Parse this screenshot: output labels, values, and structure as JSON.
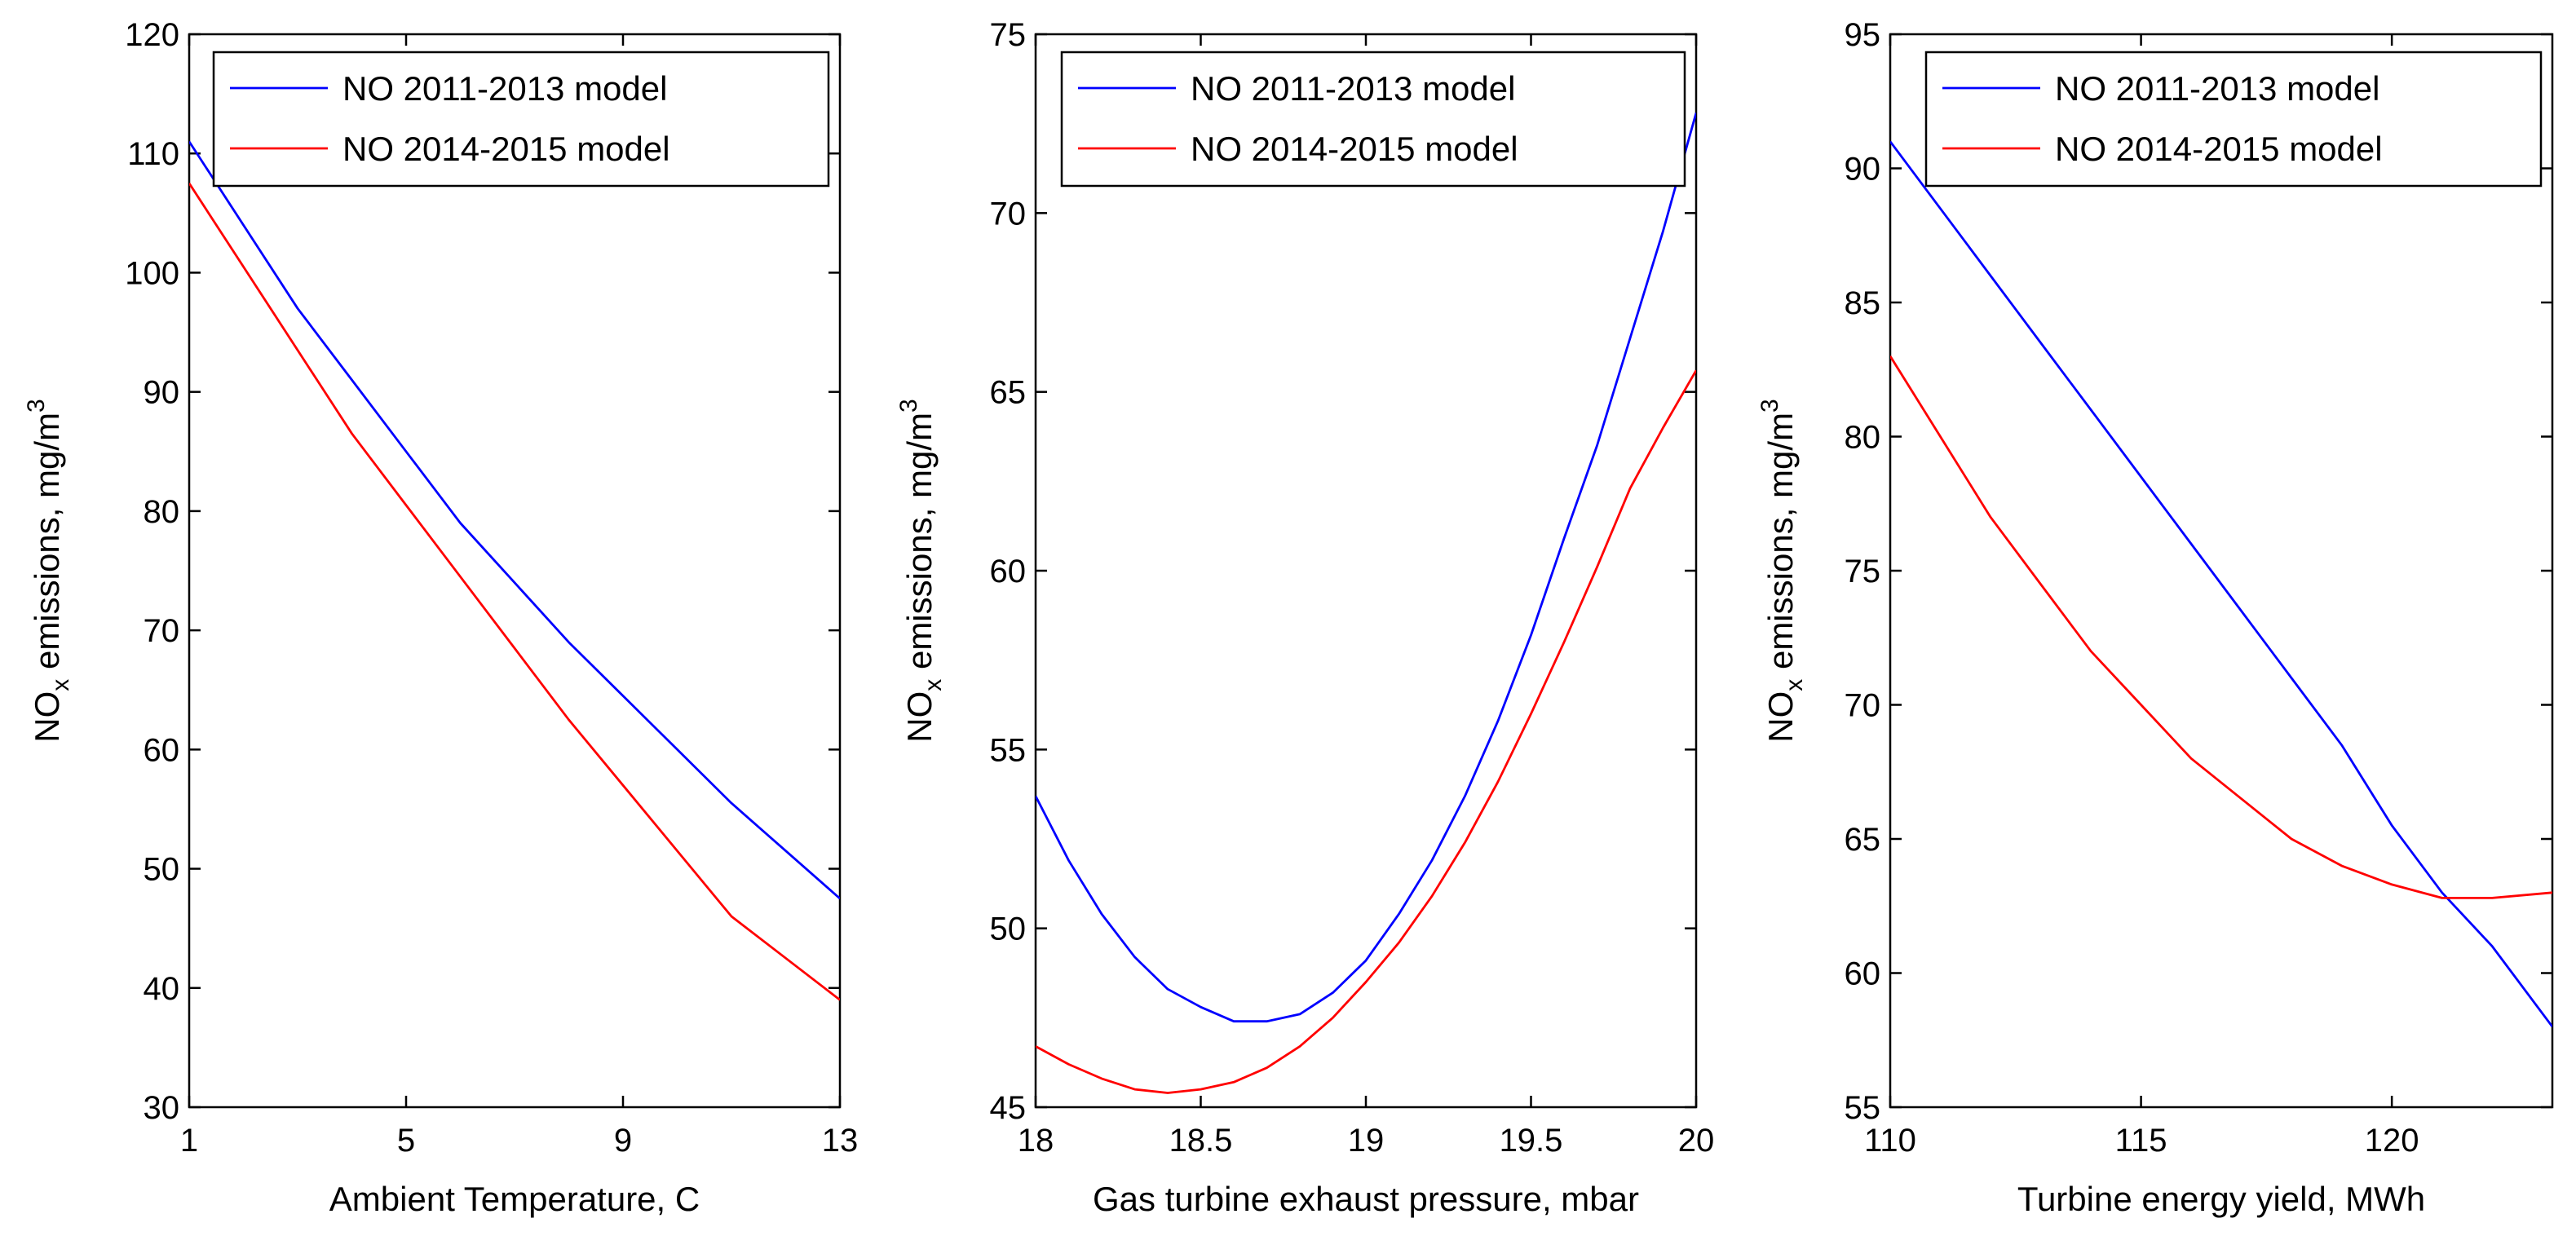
{
  "chart_data": [
    {
      "type": "line",
      "xlabel": "Ambient Temperature, C",
      "ylabel_main": "NO",
      "ylabel_sub": "x",
      "ylabel_rest": " emissions, mg/m",
      "ylabel_sup": "3",
      "xlim": [
        1,
        13
      ],
      "ylim": [
        30,
        120
      ],
      "xticks": [
        1,
        5,
        9,
        13
      ],
      "yticks": [
        30,
        40,
        50,
        60,
        70,
        80,
        90,
        100,
        110,
        120
      ],
      "legend_position": "top-right",
      "series": [
        {
          "name": "NO 2011-2013 model",
          "color": "#0000ff",
          "x": [
            1,
            2,
            3,
            4,
            5,
            6,
            7,
            8,
            9,
            10,
            11,
            12,
            13
          ],
          "y": [
            111,
            104,
            97,
            91,
            85,
            79,
            74,
            69,
            64.5,
            60,
            55.5,
            51.5,
            47.5
          ]
        },
        {
          "name": "NO 2014-2015 model",
          "color": "#ff0000",
          "x": [
            1,
            2,
            3,
            4,
            5,
            6,
            7,
            8,
            9,
            10,
            11,
            12,
            13
          ],
          "y": [
            107.5,
            100.5,
            93.5,
            86.5,
            80.5,
            74.5,
            68.5,
            62.5,
            57,
            51.5,
            46,
            42.5,
            39
          ]
        }
      ]
    },
    {
      "type": "line",
      "xlabel": "Gas turbine exhaust pressure, mbar",
      "ylabel_main": "NO",
      "ylabel_sub": "x",
      "ylabel_rest": " emissions, mg/m",
      "ylabel_sup": "3",
      "xlim": [
        18,
        20
      ],
      "ylim": [
        45,
        75
      ],
      "xticks": [
        18,
        18.5,
        19,
        19.5,
        20
      ],
      "yticks": [
        45,
        50,
        55,
        60,
        65,
        70,
        75
      ],
      "legend_position": "top-right",
      "series": [
        {
          "name": "NO 2011-2013 model",
          "color": "#0000ff",
          "x": [
            18,
            18.1,
            18.2,
            18.3,
            18.4,
            18.5,
            18.6,
            18.7,
            18.8,
            18.9,
            19,
            19.1,
            19.2,
            19.3,
            19.4,
            19.5,
            19.6,
            19.7,
            19.8,
            19.9,
            20
          ],
          "y": [
            53.7,
            51.9,
            50.4,
            49.2,
            48.3,
            47.8,
            47.4,
            47.4,
            47.6,
            48.2,
            49.1,
            50.4,
            51.9,
            53.7,
            55.8,
            58.2,
            60.9,
            63.5,
            66.5,
            69.5,
            72.8
          ]
        },
        {
          "name": "NO 2014-2015 model",
          "color": "#ff0000",
          "x": [
            18,
            18.1,
            18.2,
            18.3,
            18.4,
            18.5,
            18.6,
            18.7,
            18.8,
            18.9,
            19,
            19.1,
            19.2,
            19.3,
            19.4,
            19.5,
            19.6,
            19.7,
            19.8,
            19.9,
            20
          ],
          "y": [
            46.7,
            46.2,
            45.8,
            45.5,
            45.4,
            45.5,
            45.7,
            46.1,
            46.7,
            47.5,
            48.5,
            49.6,
            50.9,
            52.4,
            54.1,
            56,
            58,
            60.1,
            62.3,
            64,
            65.6
          ]
        }
      ]
    },
    {
      "type": "line",
      "xlabel": "Turbine energy yield, MWh",
      "ylabel_main": "NO",
      "ylabel_sub": "x",
      "ylabel_rest": " emissions, mg/m",
      "ylabel_sup": "3",
      "xlim": [
        110,
        123.2
      ],
      "ylim": [
        55,
        95
      ],
      "xticks": [
        110,
        115,
        120
      ],
      "yticks": [
        55,
        60,
        65,
        70,
        75,
        80,
        85,
        90,
        95
      ],
      "legend_position": "top-right",
      "series": [
        {
          "name": "NO 2011-2013 model",
          "color": "#0000ff",
          "x": [
            110,
            111,
            112,
            113,
            114,
            115,
            116,
            117,
            118,
            119,
            120,
            121,
            122,
            123.2
          ],
          "y": [
            91,
            88.5,
            86,
            83.5,
            81,
            78.5,
            76,
            73.5,
            71,
            68.5,
            65.5,
            63,
            61,
            58
          ]
        },
        {
          "name": "NO 2014-2015 model",
          "color": "#ff0000",
          "x": [
            110,
            111,
            112,
            113,
            114,
            115,
            116,
            117,
            118,
            119,
            120,
            121,
            122,
            123.2
          ],
          "y": [
            83,
            80,
            77,
            74.5,
            72,
            70,
            68,
            66.5,
            65,
            64,
            63.3,
            62.8,
            62.8,
            63
          ]
        }
      ]
    }
  ]
}
